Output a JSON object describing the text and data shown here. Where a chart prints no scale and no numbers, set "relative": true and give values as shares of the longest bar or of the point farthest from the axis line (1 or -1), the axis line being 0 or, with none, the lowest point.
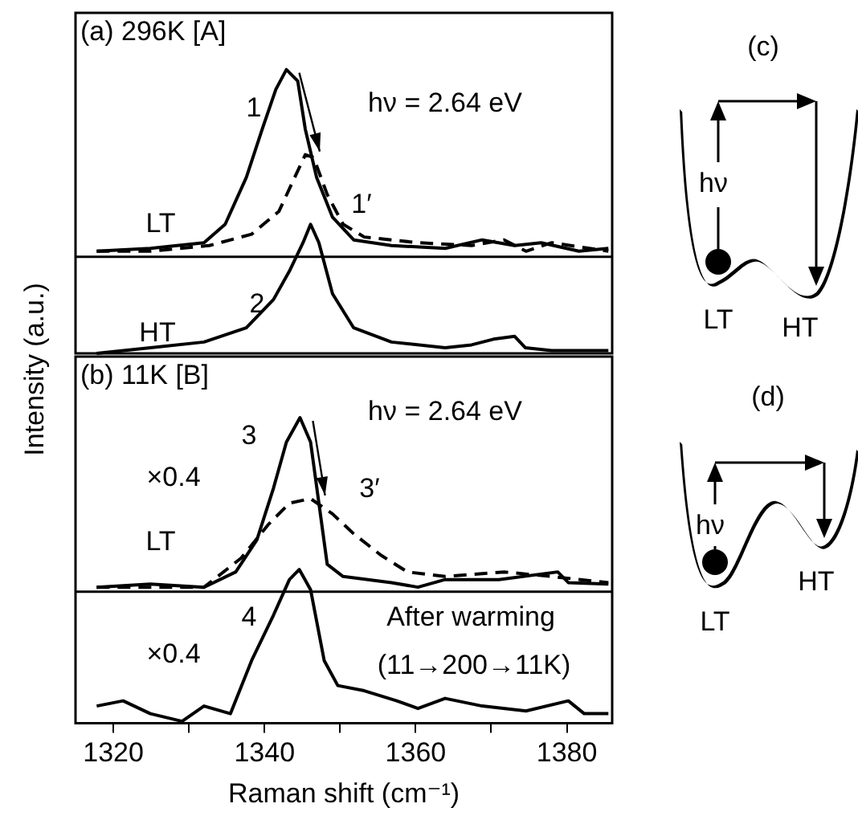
{
  "chart_data": [
    {
      "type": "line",
      "title": "(a) 296K [A]",
      "ylabel": "Intensity (a.u.)",
      "relative": true,
      "xlim": [
        1315,
        1386
      ],
      "tick_labels": false,
      "grid": false,
      "legend": false,
      "marker": "none",
      "ref_lines": [
        {
          "axis": "y",
          "value": 0.34
        }
      ],
      "annotations": [
        "hν = 2.64 eV",
        "1",
        "1′",
        "LT",
        "2",
        "HT"
      ],
      "series": [
        {
          "color": "#000000",
          "line_style": "solid",
          "x": [
            1317.8,
            1324.9,
            1332,
            1334.8,
            1337.6,
            1339.7,
            1341.5,
            1342.9,
            1344.4,
            1345.4,
            1346.9,
            1349,
            1351.8,
            1356.8,
            1363.9,
            1368.8,
            1373.1,
            1376.6,
            1381.6,
            1385.5
          ],
          "values": [
            0.36,
            0.37,
            0.39,
            0.455,
            0.62,
            0.79,
            0.93,
            1,
            0.96,
            0.79,
            0.62,
            0.48,
            0.4,
            0.38,
            0.37,
            0.4,
            0.38,
            0.39,
            0.36,
            0.37
          ]
        },
        {
          "color": "#000000",
          "line_style": "dashed",
          "x": [
            1317.8,
            1324.9,
            1332.7,
            1338.3,
            1341.9,
            1344,
            1345.4,
            1346.5,
            1348.3,
            1350.4,
            1353.2,
            1360.3,
            1367.4,
            1371.7,
            1374.6,
            1378,
            1385.5
          ],
          "values": [
            0.36,
            0.36,
            0.38,
            0.42,
            0.5,
            0.62,
            0.7,
            0.69,
            0.56,
            0.455,
            0.41,
            0.39,
            0.38,
            0.4,
            0.36,
            0.39,
            0.36
          ]
        },
        {
          "color": "#000000",
          "line_style": "solid",
          "x": [
            1317.8,
            1324.9,
            1332,
            1337.6,
            1341.2,
            1343.3,
            1345.1,
            1346.1,
            1347.2,
            1349,
            1351.8,
            1356.8,
            1363.9,
            1367.4,
            1370.3,
            1373.1,
            1374.5,
            1378,
            1385.5
          ],
          "values": [
            0,
            0.02,
            0.04,
            0.09,
            0.19,
            0.29,
            0.39,
            0.455,
            0.39,
            0.21,
            0.09,
            0.04,
            0.02,
            0.03,
            0.05,
            0.06,
            0.02,
            0.01,
            0.01
          ]
        }
      ]
    },
    {
      "type": "line",
      "title": "(b) 11K [B]",
      "xlabel": "Raman shift (cm⁻¹)",
      "relative": true,
      "xlim": [
        1315,
        1386
      ],
      "xticks": [
        1320,
        {
          "value": 1330,
          "label": null
        },
        1340,
        {
          "value": 1350,
          "label": null
        },
        1360,
        {
          "value": 1370,
          "label": null
        },
        1380
      ],
      "tick_labels": "x",
      "grid": false,
      "legend": false,
      "marker": "none",
      "ref_lines": [
        {
          "axis": "y",
          "value": 0.43
        }
      ],
      "annotations": [
        "hν = 2.64 eV",
        "3",
        "×0.4",
        "3′",
        "LT",
        "4",
        "×0.4",
        "After warming",
        "(11→200→11K)"
      ],
      "series": [
        {
          "color": "#000000",
          "line_style": "solid",
          "x": [
            1317.8,
            1324.9,
            1332,
            1336.2,
            1339,
            1341.2,
            1342.9,
            1344.7,
            1346.1,
            1347.2,
            1348.3,
            1350.4,
            1356.8,
            1360.3,
            1363.9,
            1371,
            1378.8,
            1380.2,
            1385.5
          ],
          "values": [
            0.445,
            0.455,
            0.445,
            0.495,
            0.6,
            0.77,
            0.92,
            1,
            0.92,
            0.72,
            0.52,
            0.48,
            0.46,
            0.445,
            0.47,
            0.47,
            0.495,
            0.46,
            0.455
          ]
        },
        {
          "color": "#000000",
          "line_style": "dashed",
          "x": [
            1317.8,
            1332,
            1336.9,
            1340.5,
            1343.3,
            1346.1,
            1349,
            1351.8,
            1355.4,
            1358.9,
            1363.9,
            1371.7,
            1378,
            1385.5
          ],
          "values": [
            0.445,
            0.445,
            0.54,
            0.65,
            0.72,
            0.735,
            0.685,
            0.62,
            0.55,
            0.495,
            0.48,
            0.495,
            0.48,
            0.46
          ]
        },
        {
          "color": "#000000",
          "line_style": "solid",
          "x": [
            1317.8,
            1321.3,
            1324.9,
            1329.1,
            1332,
            1335.5,
            1338.3,
            1341.2,
            1343.3,
            1344.6,
            1346.1,
            1347.9,
            1349.7,
            1353.2,
            1357.5,
            1360.3,
            1363.9,
            1368.8,
            1374.6,
            1380.2,
            1382.3,
            1385.5
          ],
          "values": [
            0.056,
            0.073,
            0.031,
            0.006,
            0.056,
            0.031,
            0.205,
            0.354,
            0.47,
            0.503,
            0.437,
            0.205,
            0.123,
            0.106,
            0.073,
            0.048,
            0.081,
            0.056,
            0.04,
            0.073,
            0.031,
            0.031
          ]
        }
      ]
    },
    {
      "type": "other",
      "annotations": [
        "(c)",
        "hν",
        "LT",
        "HT"
      ]
    },
    {
      "type": "other",
      "annotations": [
        "(d)",
        "hν",
        "LT",
        "HT"
      ]
    }
  ]
}
